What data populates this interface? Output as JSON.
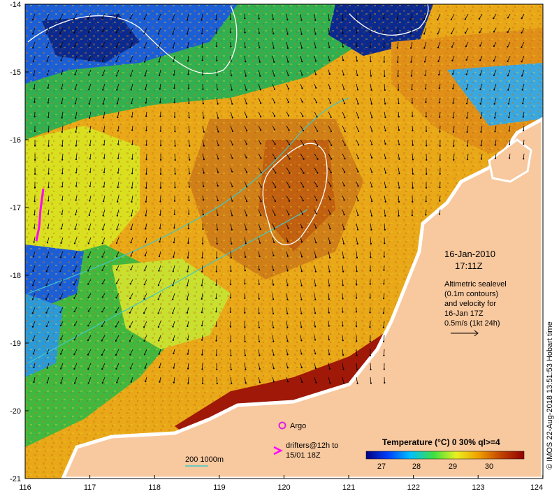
{
  "map": {
    "x_ticks": [
      "116",
      "117",
      "118",
      "119",
      "120",
      "121",
      "122",
      "123",
      "124"
    ],
    "y_ticks": [
      "-14",
      "-15",
      "-16",
      "-17",
      "-18",
      "-19",
      "-20",
      "-21"
    ],
    "date": "16-Jan-2010",
    "time": "17:11Z",
    "info_lines": [
      "Altimetric sealevel",
      "(0.1m contours)",
      "and velocity for",
      "16-Jan 17Z",
      "0.5m/s (1kt 24h)"
    ],
    "argo_label": "Argo",
    "drifters_line1": "drifters@12h to",
    "drifters_line2": "15/01 18Z",
    "depth_label": "200  1000m",
    "colorbar_title": "Temperature (°C) 0 30% ql>=4",
    "colorbar_ticks": [
      "27",
      "28",
      "29",
      "30"
    ],
    "credit": "© IMOS 22-Aug-2018 13:51:53 Hobart time",
    "colors": {
      "land": "#f8c89e",
      "coast": "#ffffff",
      "argo": "#e020e0",
      "drifter": "#ff00ff",
      "depth_contour": "#40c8c8",
      "colorbar_stops": [
        "#000080",
        "#0040ff",
        "#00c0ff",
        "#40e040",
        "#e8f020",
        "#f0a000",
        "#c04000",
        "#900000"
      ]
    }
  }
}
